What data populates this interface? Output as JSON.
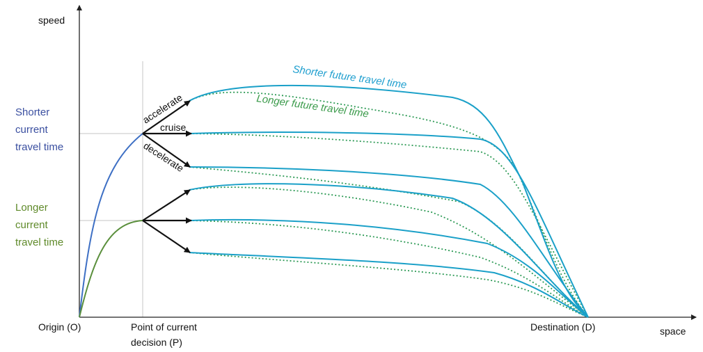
{
  "axes": {
    "y_label": "speed",
    "x_label": "space",
    "origin_label": "Origin (O)",
    "decision_label_line1": "Point of current",
    "decision_label_line2": "decision (P)",
    "destination_label": "Destination (D)"
  },
  "left_labels": {
    "shorter": {
      "lines": [
        "Shorter",
        "current",
        "travel time"
      ],
      "color": "#3a4fa0"
    },
    "longer": {
      "lines": [
        "Longer",
        "current",
        "travel time"
      ],
      "color": "#5f8a2a"
    }
  },
  "actions": {
    "accelerate": "accelerate",
    "cruise": "cruise",
    "decelerate": "decelerate"
  },
  "curve_titles": {
    "shorter_future": "Shorter future travel time",
    "longer_future": "Longer future travel time"
  },
  "colors": {
    "axis": "#222222",
    "guide": "#b8b8b8",
    "arrow": "#111111",
    "shorter_current_curve": "#3d6fc4",
    "longer_current_curve": "#5a8f3c",
    "shorter_future_curve": "#1aa0c8",
    "longer_future_curve": "#2d9a55",
    "shorter_future_text": "#1f9fcf",
    "longer_future_text": "#3a9a4a"
  }
}
